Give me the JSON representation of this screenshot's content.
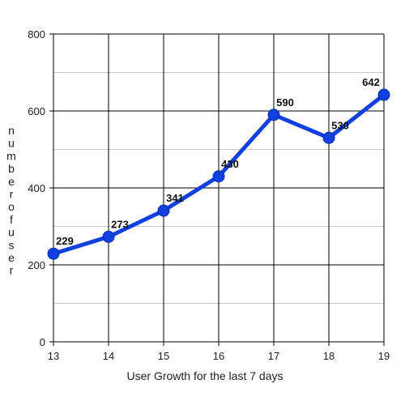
{
  "chart_data": {
    "type": "line",
    "title": "",
    "xlabel": "User Growth for the last 7 days",
    "ylabel": "number of user",
    "x": [
      13,
      14,
      15,
      16,
      17,
      18,
      19
    ],
    "series": [
      {
        "values": [
          229,
          273,
          341,
          430,
          590,
          530,
          642
        ]
      }
    ],
    "xlim": [
      13,
      19
    ],
    "ylim": [
      0,
      800
    ],
    "y_ticks": [
      0,
      200,
      400,
      600,
      800
    ],
    "grid": true,
    "legend": "none",
    "data_labels": true,
    "colors": {
      "line": "#1040e0",
      "major_grid": "#000000",
      "minor_grid": "#c8c8c8"
    }
  }
}
